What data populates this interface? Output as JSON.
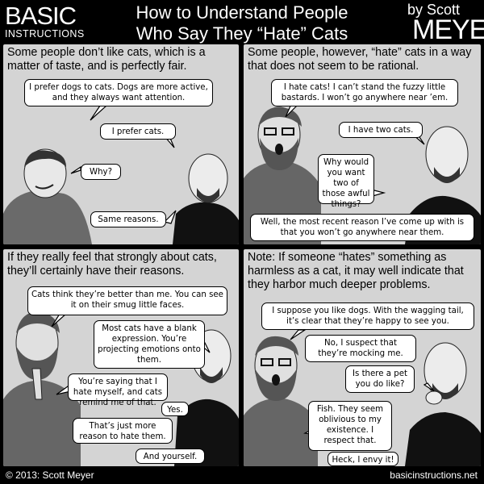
{
  "header": {
    "logo_line1": "BASIC",
    "logo_line2": "INSTRUCTIONS",
    "title_line1": "How to Understand People",
    "title_line2": "Who Say They “Hate” Cats",
    "by": "by Scott",
    "author": "MEYER"
  },
  "panels": [
    {
      "caption": "Some people don’t like cats, which is a matter of taste, and is perfectly fair.",
      "bubbles": [
        "I prefer dogs to cats. Dogs are more active, and they always want attention.",
        "I prefer cats.",
        "Why?",
        "Same reasons."
      ]
    },
    {
      "caption": "Some people, however, “hate” cats in a way that does not seem to be rational.",
      "bubbles": [
        "I hate cats! I can’t stand the fuzzy little bastards. I won’t go anywhere near ’em.",
        "I have two cats.",
        "Why would you want two of those awful things?",
        "Well, the most recent reason I’ve come up with is that you won’t go anywhere near them."
      ]
    },
    {
      "caption": "If they really feel that strongly about cats, they’ll certainly have their reasons.",
      "bubbles": [
        "Cats think they’re better than me. You can see it on their smug little faces.",
        "Most cats have a blank expression. You’re projecting emotions onto them.",
        "You’re saying that I hate myself, and cats remind me of that.",
        "Yes.",
        "That’s just more reason to hate them.",
        "And yourself."
      ]
    },
    {
      "caption": "Note: If someone “hates” something as harmless as a cat, it may well indicate that they harbor much deeper problems.",
      "bubbles": [
        "I suppose you like dogs. With the wagging tail, it’s clear that they’re happy to see you.",
        "No, I suspect that they’re mocking me.",
        "Is there a pet you do like?",
        "Fish. They seem oblivious to my existence. I respect that.",
        "Heck, I envy it!"
      ]
    }
  ],
  "footer": {
    "copyright": "© 2013: Scott Meyer",
    "site": "basicinstructions.net"
  }
}
